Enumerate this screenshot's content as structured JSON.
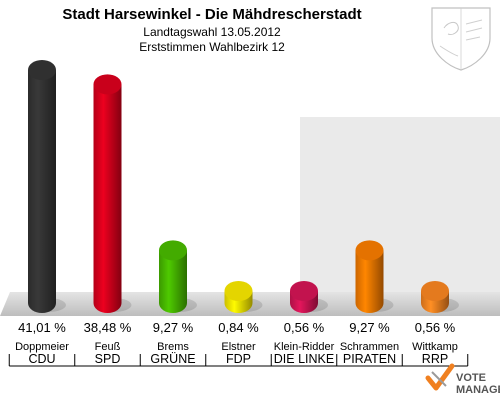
{
  "chart_data": {
    "type": "bar",
    "title": "Stadt Harsewinkel - Die Mähdrescherstadt",
    "subtitle_lines": [
      "Landtagswahl 13.05.2012",
      "Erststimmen Wahlbezirk 12"
    ],
    "value_labels": [
      "41,01 %",
      "38,48 %",
      "9,27 %",
      "0,84 %",
      "0,56 %",
      "9,27 %",
      "0,56 %"
    ],
    "categories": [
      "CDU",
      "SPD",
      "GRÜNE",
      "FDP",
      "DIE LINKE",
      "PIRATEN",
      "RRP"
    ],
    "candidates": [
      "Doppmeier",
      "Feuß",
      "Brems",
      "Elstner",
      "Klein-Ridder",
      "Schrammen",
      "Wittkamp"
    ],
    "values": [
      41.01,
      38.48,
      9.27,
      0.84,
      0.56,
      9.27,
      0.56
    ],
    "colors": [
      "#333333",
      "#d4001c",
      "#46b400",
      "#f0e000",
      "#cc1452",
      "#f07800",
      "#f08020"
    ],
    "ylim": [
      0,
      41.01
    ],
    "grid": false,
    "legend": "none"
  },
  "watermark": {
    "line1": "VOTE",
    "line2": "MANAGER"
  }
}
